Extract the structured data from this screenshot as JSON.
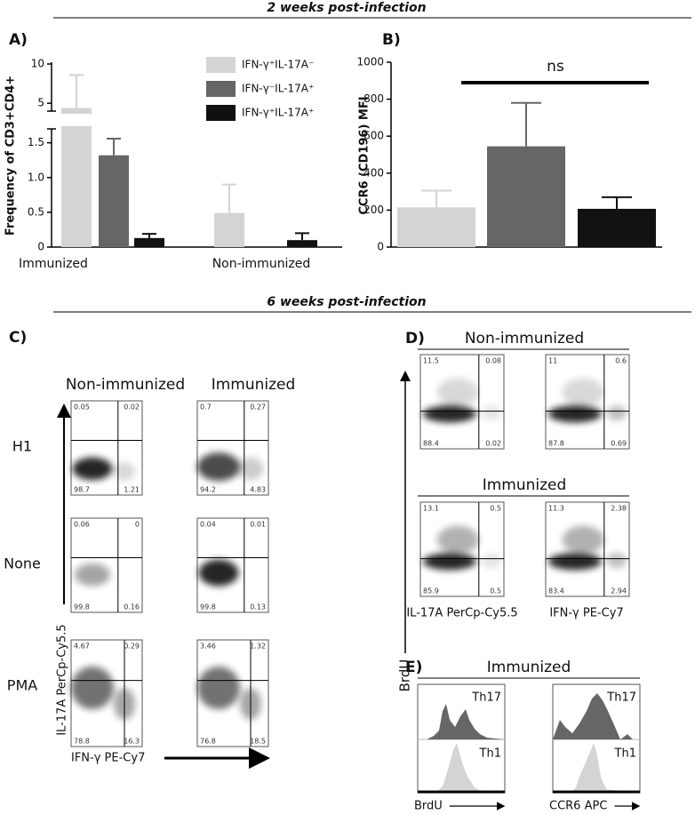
{
  "headers": [
    "2 weeks post-infection",
    "6 weeks post-infection"
  ],
  "chart_data": [
    {
      "type": "bar",
      "label": "A)",
      "y_label": "Frequency of CD3+CD4+",
      "categories": [
        "Immunized",
        "Non-immunized"
      ],
      "series": [
        {
          "name": "IFN-γ⁺IL-17A⁻",
          "color": "#d4d4d4",
          "values": [
            4.4,
            0.49
          ],
          "errors": [
            4.2,
            0.41
          ]
        },
        {
          "name": "IFN-γ⁻IL-17A⁺",
          "color": "#666666",
          "values": [
            1.32,
            null
          ],
          "errors": [
            0.24,
            null
          ]
        },
        {
          "name": "IFN-γ⁺IL-17A⁺",
          "color": "#111111",
          "values": [
            0.13,
            0.1
          ],
          "errors": [
            0.06,
            0.1
          ]
        }
      ],
      "ylim": [
        0,
        10
      ],
      "axis_break": [
        1.7,
        4
      ],
      "yticks": [
        0,
        0.5,
        {
          "value": 1,
          "label": "1.0"
        },
        1.5,
        5,
        10
      ]
    },
    {
      "type": "bar",
      "label": "B)",
      "y_label": "CCR6 (CD196) MFI",
      "values": [
        215,
        545,
        207
      ],
      "errors": [
        90,
        235,
        63
      ],
      "colors": [
        "#d4d4d4",
        "#666666",
        "#111111"
      ],
      "ylim": [
        0,
        1000
      ],
      "yticks": [
        0,
        200,
        400,
        600,
        800,
        1000
      ],
      "annotation": "ns"
    }
  ],
  "panel_c": {
    "label": "C)",
    "columns": [
      "Non-immunized",
      "Immunized"
    ],
    "rows": [
      "H1",
      "None",
      "PMA"
    ],
    "y_axis": "IL-17A PerCp-Cy5.5",
    "x_axis": "IFN-γ PE-Cy7",
    "plots": [
      [
        [
          0.05,
          0.02,
          98.7,
          1.21
        ],
        [
          0.7,
          0.27,
          94.2,
          4.83
        ]
      ],
      [
        [
          0.06,
          0,
          99.8,
          0.16
        ],
        [
          0.04,
          0.01,
          99.8,
          0.13
        ]
      ],
      [
        [
          4.67,
          0.29,
          78.8,
          16.3
        ],
        [
          3.46,
          1.32,
          76.8,
          18.5
        ]
      ]
    ]
  },
  "panel_d": {
    "label": "D)",
    "groups": [
      "Non-immunized",
      "Immunized"
    ],
    "y_axis": "BrdU",
    "x_axes": [
      "IL-17A PerCp-Cy5.5",
      "IFN-γ PE-Cy7"
    ],
    "plots": [
      [
        [
          11.5,
          0.08,
          88.4,
          0.02
        ],
        [
          11,
          0.6,
          87.8,
          0.69
        ]
      ],
      [
        [
          13.1,
          0.5,
          85.9,
          0.5
        ],
        [
          11.3,
          2.38,
          83.4,
          2.94
        ]
      ]
    ]
  },
  "panel_e": {
    "label": "E)",
    "group": "Immunized",
    "tracks": [
      "Th17",
      "Th1"
    ],
    "x_axes": [
      "BrdU",
      "CCR6 APC"
    ]
  }
}
